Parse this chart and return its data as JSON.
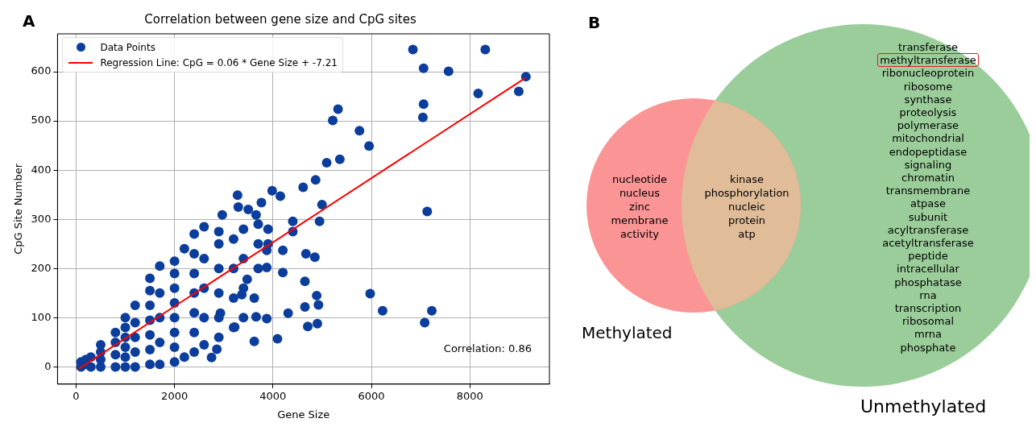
{
  "chart_data": [
    {
      "type": "scatter",
      "title": "Correlation between gene size and CpG sites",
      "xlabel": "Gene Size",
      "ylabel": "CpG Site Number",
      "xlim": [
        -377,
        9616
      ],
      "ylim": [
        -35,
        677
      ],
      "xticks": [
        0,
        2000,
        4000,
        6000,
        8000
      ],
      "yticks": [
        0,
        100,
        200,
        300,
        400,
        500,
        600
      ],
      "grid": true,
      "legend": "top left",
      "annotations": [
        "A",
        "Correlation: 0.86"
      ],
      "series": [
        {
          "name": "Data Points",
          "type": "scatter",
          "marker": "circle",
          "color": "#0b3d9c",
          "x": [
            100,
            100,
            200,
            200,
            300,
            300,
            500,
            500,
            500,
            500,
            800,
            800,
            800,
            800,
            1000,
            1000,
            1000,
            1000,
            1000,
            1000,
            1200,
            1200,
            1200,
            1200,
            1200,
            1500,
            1500,
            1500,
            1500,
            1500,
            1500,
            1500,
            1700,
            1700,
            1700,
            1700,
            1700,
            2000,
            2000,
            2000,
            2000,
            2000,
            2000,
            2000,
            2000,
            2200,
            2200,
            2400,
            2400,
            2400,
            2400,
            2400,
            2400,
            2400,
            2600,
            2600,
            2600,
            2600,
            2600,
            2900,
            2900,
            2900,
            2900,
            2900,
            2900,
            3200,
            3200,
            3200,
            3200,
            3400,
            3400,
            3400,
            3400,
            3700,
            3700,
            3700,
            3900,
            3900,
            8313,
            6843,
            7060,
            7567,
            9138,
            8993,
            8168,
            7060,
            7046,
            5322,
            5214,
            5757,
            5952,
            5091,
            5358,
            4866,
            4613,
            4996,
            4946,
            7133,
            5974,
            6227,
            7227,
            7082,
            4670,
            4851,
            4649,
            4888,
            4924,
            4649,
            4707,
            4902,
            4403,
            4403,
            4200,
            4200,
            4091,
            4308,
            3983,
            4149,
            3765,
            3280,
            2969,
            3295,
            3498,
            3657,
            3874,
            3874,
            3476,
            3620,
            3657,
            3874,
            3620,
            2860,
            2752,
            3222,
            2932,
            3367
          ],
          "values": [
            0,
            10,
            5,
            15,
            0,
            20,
            0,
            15,
            30,
            45,
            0,
            25,
            50,
            70,
            0,
            20,
            40,
            60,
            80,
            100,
            0,
            30,
            60,
            90,
            125,
            5,
            35,
            65,
            95,
            125,
            155,
            180,
            5,
            50,
            100,
            150,
            205,
            10,
            40,
            70,
            100,
            130,
            160,
            190,
            215,
            20,
            240,
            30,
            70,
            110,
            150,
            190,
            230,
            270,
            45,
            100,
            160,
            220,
            285,
            60,
            100,
            150,
            200,
            250,
            275,
            80,
            140,
            200,
            260,
            100,
            160,
            220,
            280,
            200,
            250,
            290,
            250,
            280,
            645,
            645,
            607,
            601,
            590,
            560,
            556,
            534,
            507,
            524,
            501,
            480,
            449,
            415,
            422,
            380,
            365,
            330,
            296,
            316,
            149,
            114,
            114,
            90,
            230,
            223,
            174,
            145,
            126,
            122,
            82,
            88,
            296,
            275,
            237,
            192,
            57,
            109,
            358,
            347,
            334,
            349,
            309,
            325,
            320,
            309,
            237,
            202,
            178,
            140,
            102,
            98,
            52,
            36,
            19,
            81,
            109,
            147
          ]
        },
        {
          "name": "Regression Line: CpG = 0.06 * Gene Size + -7.21",
          "type": "line",
          "marker": "none",
          "color": "#ff0000",
          "x": [
            50,
            9138
          ],
          "values": [
            -4,
            588
          ]
        }
      ]
    },
    {
      "type": "other",
      "categories": [
        "Methylated",
        "Unmethylated"
      ],
      "colors": [
        "#fb9494",
        "#9acd9a",
        "#e0bc98"
      ],
      "annotations": [
        "B",
        "nucleotide\nnucleus\nzinc\nmembrane\nactivity",
        "kinase\nphosphorylation\nnucleic\nprotein\natp",
        "transferase\nmethyltransferase\nribonucleoprotein\nribosome\nsynthase\nproteolysis\npolymerase\nmitochondrial\nendopeptidase\nsignaling\nchromatin\ntransmembrane\natpase\nsubunit\nacyltransferase\nacetyltransferase\npeptide\nintracellular\nphosphatase\nrna\ntranscription\nribosomal\nmrna\nphosphate"
      ]
    }
  ]
}
